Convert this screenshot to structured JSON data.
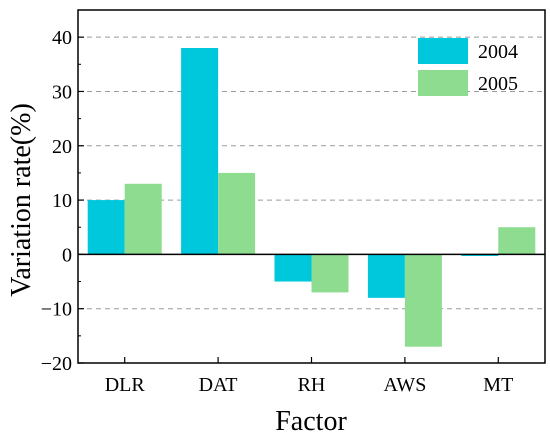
{
  "chart_data": {
    "type": "bar",
    "title": "",
    "xlabel": "Factor",
    "ylabel": "Variation rate(%)",
    "categories": [
      "DLR",
      "DAT",
      "RH",
      "AWS",
      "MT"
    ],
    "series": [
      {
        "name": "2004",
        "values": [
          10,
          38,
          -5,
          -8,
          -0.3
        ],
        "color": "#00c8dc"
      },
      {
        "name": "2005",
        "values": [
          13,
          15,
          -7,
          -17,
          5
        ],
        "color": "#8ddc8f"
      }
    ],
    "ylim": [
      -20,
      45
    ],
    "yticks": [
      -20,
      -10,
      0,
      10,
      20,
      30,
      40
    ],
    "ytick_labels": [
      "−20",
      "−10",
      "0",
      "10",
      "20",
      "30",
      "40"
    ],
    "grid": true,
    "legend_position": "top-right"
  }
}
